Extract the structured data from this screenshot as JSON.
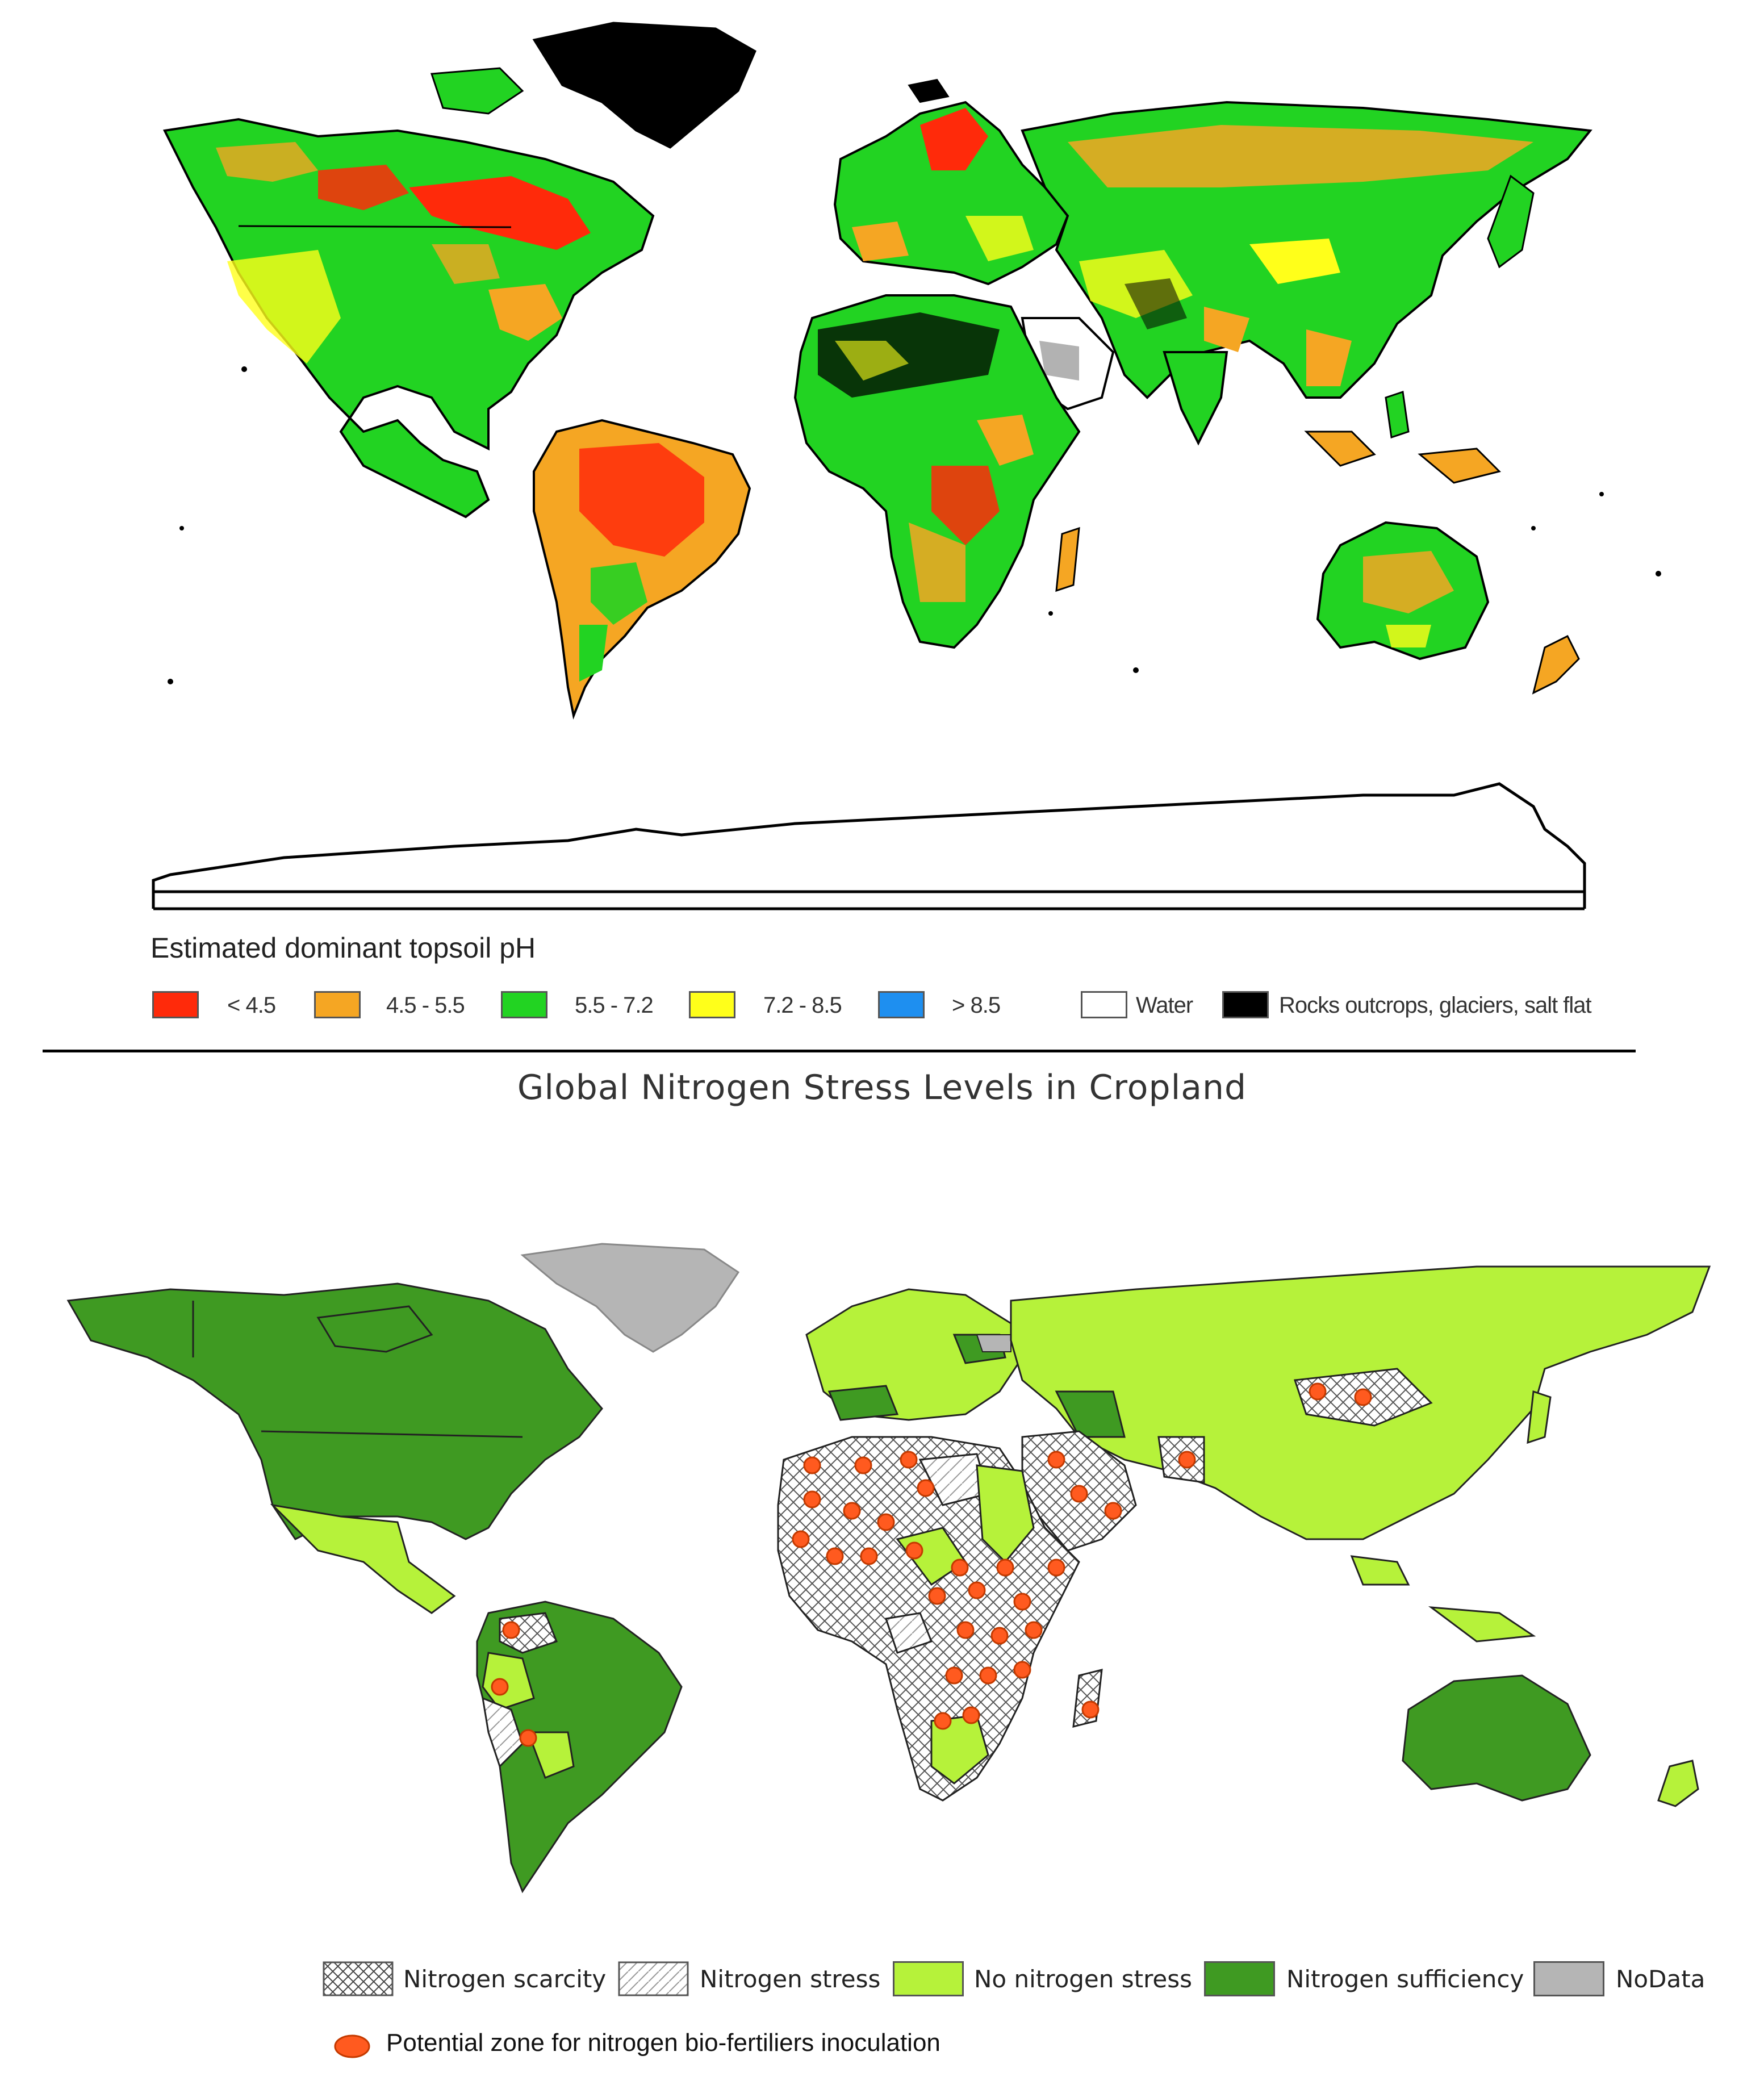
{
  "top_map": {
    "legend_title": "Estimated dominant topsoil pH",
    "legend": [
      {
        "label": "< 4.5",
        "color": "#ff2a0a"
      },
      {
        "label": "4.5 - 5.5",
        "color": "#f5a623"
      },
      {
        "label": "5.5 - 7.2",
        "color": "#22d322"
      },
      {
        "label": "7.2 - 8.5",
        "color": "#ffff1a"
      },
      {
        "label": "> 8.5",
        "color": "#1e8ff0"
      },
      {
        "label": "Water",
        "color": "#ffffff"
      },
      {
        "label": "Rocks outcrops, glaciers, salt flat",
        "color": "#000000"
      }
    ]
  },
  "bottom_map": {
    "title": "Global Nitrogen Stress Levels in Cropland",
    "legend": [
      {
        "label": "Nitrogen scarcity",
        "pattern": "crosshatch"
      },
      {
        "label": "Nitrogen stress",
        "pattern": "diagonal"
      },
      {
        "label": "No nitrogen stress",
        "color": "#b6f23a"
      },
      {
        "label": "Nitrogen sufficiency",
        "color": "#3f9a22"
      },
      {
        "label": "NoData",
        "color": "#b5b5b5"
      }
    ],
    "inoculation_label": "Potential zone for nitrogen bio-fertiliers inoculation",
    "inoculation_color": "#ff5a1f"
  }
}
